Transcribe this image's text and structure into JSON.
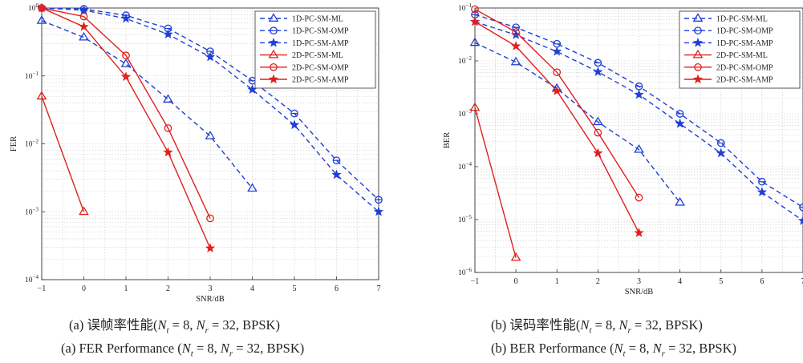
{
  "captions": {
    "a_cn_prefix": "(a)  误帧率性能(",
    "a_en_prefix": "(a)  FER Performance (",
    "b_cn_prefix": "(b)  误码率性能(",
    "b_en_prefix": "(b)  BER Performance (",
    "nt_symbol": "N",
    "nt_sub": "t",
    "nt_value": " = 8, ",
    "nr_symbol": "N",
    "nr_sub": "r",
    "nr_value": " = 32, BPSK)"
  },
  "colors": {
    "one_d": "#1f3fd6",
    "two_d": "#e0201c",
    "grid": "#c9c9c9"
  },
  "chart_data": [
    {
      "id": "fer",
      "type": "line",
      "title": "",
      "xlabel": "SNR/dB",
      "ylabel": "FER",
      "x_scale": "linear",
      "y_scale": "log",
      "xlim": [
        -1,
        7
      ],
      "ylim": [
        0.0001,
        1
      ],
      "xticks": [
        "−1",
        "0",
        "1",
        "2",
        "3",
        "4",
        "5",
        "6",
        "7"
      ],
      "yticks": [
        {
          "base": "10",
          "exp": "0"
        },
        {
          "base": "10",
          "exp": "−1"
        },
        {
          "base": "10",
          "exp": "−2"
        },
        {
          "base": "10",
          "exp": "−3"
        },
        {
          "base": "10",
          "exp": "−4"
        }
      ],
      "grid": true,
      "legend_position": "top-right",
      "series": [
        {
          "name": "1D-PC-SM-ML",
          "style": "dashed",
          "marker": "triangle",
          "color": "#1f3fd6",
          "x": [
            -1,
            0,
            1,
            2,
            3,
            4
          ],
          "y": [
            0.65,
            0.37,
            0.15,
            0.045,
            0.013,
            0.0022
          ]
        },
        {
          "name": "1D-PC-SM-OMP",
          "style": "dashed",
          "marker": "circle-line",
          "color": "#1f3fd6",
          "x": [
            -1,
            0,
            1,
            2,
            3,
            4,
            5,
            6,
            7
          ],
          "y": [
            1.0,
            0.97,
            0.78,
            0.5,
            0.23,
            0.085,
            0.028,
            0.0057,
            0.0015
          ]
        },
        {
          "name": "1D-PC-SM-AMP",
          "style": "dashed",
          "marker": "star",
          "color": "#1f3fd6",
          "x": [
            -1,
            0,
            1,
            2,
            3,
            4,
            5,
            6,
            7
          ],
          "y": [
            1.0,
            0.93,
            0.7,
            0.41,
            0.19,
            0.063,
            0.019,
            0.0035,
            0.001
          ]
        },
        {
          "name": "2D-PC-SM-ML",
          "style": "solid",
          "marker": "triangle",
          "color": "#e0201c",
          "x": [
            -1,
            0
          ],
          "y": [
            0.05,
            0.001
          ]
        },
        {
          "name": "2D-PC-SM-OMP",
          "style": "solid",
          "marker": "circle",
          "color": "#e0201c",
          "x": [
            -1,
            0,
            1,
            2,
            3
          ],
          "y": [
            1.0,
            0.75,
            0.2,
            0.017,
            0.0008
          ]
        },
        {
          "name": "2D-PC-SM-AMP",
          "style": "solid",
          "marker": "star",
          "color": "#e0201c",
          "x": [
            -1,
            0,
            1,
            2,
            3
          ],
          "y": [
            1.0,
            0.53,
            0.097,
            0.0075,
            0.00029
          ]
        }
      ]
    },
    {
      "id": "ber",
      "type": "line",
      "title": "",
      "xlabel": "SNR/dB",
      "ylabel": "BER",
      "x_scale": "linear",
      "y_scale": "log",
      "xlim": [
        -1,
        7
      ],
      "ylim": [
        1e-06,
        0.1
      ],
      "xticks": [
        "−1",
        "0",
        "1",
        "2",
        "3",
        "4",
        "5",
        "6",
        "7"
      ],
      "yticks": [
        {
          "base": "10",
          "exp": "−1"
        },
        {
          "base": "10",
          "exp": "−2"
        },
        {
          "base": "10",
          "exp": "−3"
        },
        {
          "base": "10",
          "exp": "−4"
        },
        {
          "base": "10",
          "exp": "−5"
        },
        {
          "base": "10",
          "exp": "−6"
        }
      ],
      "grid": true,
      "legend_position": "top-right",
      "series": [
        {
          "name": "1D-PC-SM-ML",
          "style": "dashed",
          "marker": "triangle",
          "color": "#1f3fd6",
          "x": [
            -1,
            0,
            1,
            2,
            3,
            4
          ],
          "y": [
            0.022,
            0.0095,
            0.003,
            0.0007,
            0.00021,
            2.1e-05
          ]
        },
        {
          "name": "1D-PC-SM-OMP",
          "style": "dashed",
          "marker": "circle-line",
          "color": "#1f3fd6",
          "x": [
            -1,
            0,
            1,
            2,
            3,
            4,
            5,
            6,
            7
          ],
          "y": [
            0.075,
            0.043,
            0.021,
            0.0092,
            0.0033,
            0.001,
            0.00028,
            5.2e-05,
            1.7e-05
          ]
        },
        {
          "name": "1D-PC-SM-AMP",
          "style": "dashed",
          "marker": "star",
          "color": "#1f3fd6",
          "x": [
            -1,
            0,
            1,
            2,
            3,
            4,
            5,
            6,
            7
          ],
          "y": [
            0.055,
            0.031,
            0.015,
            0.0062,
            0.0023,
            0.00065,
            0.00018,
            3.3e-05,
            9.5e-06
          ]
        },
        {
          "name": "2D-PC-SM-ML",
          "style": "solid",
          "marker": "triangle",
          "color": "#e0201c",
          "x": [
            -1,
            0
          ],
          "y": [
            0.0013,
            1.9e-06
          ]
        },
        {
          "name": "2D-PC-SM-OMP",
          "style": "solid",
          "marker": "circle",
          "color": "#e0201c",
          "x": [
            -1,
            0,
            1,
            2,
            3
          ],
          "y": [
            0.095,
            0.035,
            0.0061,
            0.00044,
            2.6e-05
          ]
        },
        {
          "name": "2D-PC-SM-AMP",
          "style": "solid",
          "marker": "star",
          "color": "#e0201c",
          "x": [
            -1,
            0,
            1,
            2,
            3
          ],
          "y": [
            0.055,
            0.019,
            0.0027,
            0.00018,
            5.6e-06
          ]
        }
      ]
    }
  ]
}
